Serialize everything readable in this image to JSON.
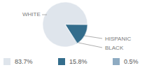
{
  "chart_data": {
    "type": "pie",
    "categories": [
      "WHITE",
      "HISPANIC",
      "BLACK"
    ],
    "values": [
      83.7,
      15.8,
      0.5
    ],
    "value_labels": [
      "83.7%",
      "15.8%",
      "0.5%"
    ],
    "colors": [
      "#dfe5ec",
      "#346d8c",
      "#8eabc2"
    ]
  }
}
